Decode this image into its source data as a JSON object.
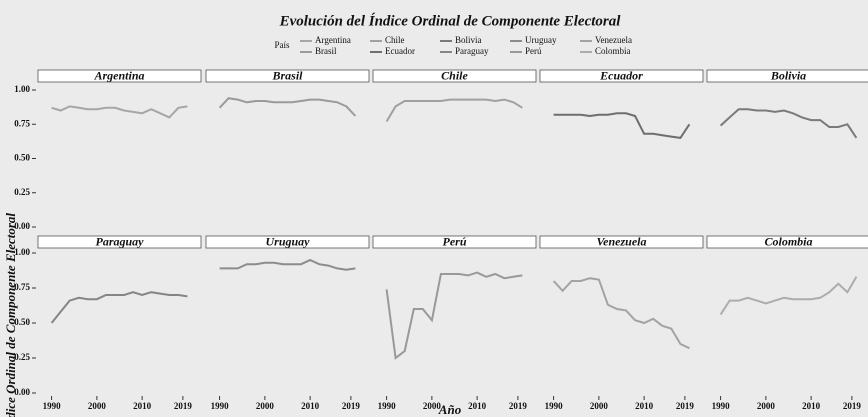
{
  "chart_data": {
    "type": "line",
    "title": "Evolución del Índice Ordinal de Componente Electoral",
    "legend_title": "País",
    "x_label": "Año",
    "y_label": "Índice Ordinal de Componente Electoral",
    "x": [
      1990,
      1992,
      1994,
      1996,
      1998,
      2000,
      2002,
      2004,
      2006,
      2008,
      2010,
      2012,
      2014,
      2016,
      2018,
      2020
    ],
    "xlim": [
      1987,
      2023
    ],
    "xticks": [
      1990,
      2000,
      2010,
      2019
    ],
    "ylim": [
      0,
      1
    ],
    "yticks": [
      {
        "value": 0,
        "label": "0.00"
      },
      0.25,
      {
        "value": 0.5,
        "label": "0.50"
      },
      0.75,
      {
        "value": 1,
        "label": "1.00"
      }
    ],
    "grid": false,
    "series": [
      {
        "name": "Argentina",
        "color": "#a6a6a6",
        "values": [
          0.87,
          0.85,
          0.88,
          0.87,
          0.86,
          0.86,
          0.87,
          0.87,
          0.85,
          0.84,
          0.83,
          0.86,
          0.83,
          0.8,
          0.87,
          0.88
        ]
      },
      {
        "name": "Brasil",
        "color": "#9a9a9a",
        "values": [
          0.87,
          0.94,
          0.93,
          0.91,
          0.92,
          0.92,
          0.91,
          0.91,
          0.91,
          0.92,
          0.93,
          0.93,
          0.92,
          0.91,
          0.88,
          0.81
        ]
      },
      {
        "name": "Chile",
        "color": "#a0a0a0",
        "values": [
          0.77,
          0.88,
          0.92,
          0.92,
          0.92,
          0.92,
          0.92,
          0.93,
          0.93,
          0.93,
          0.93,
          0.93,
          0.92,
          0.93,
          0.91,
          0.87
        ]
      },
      {
        "name": "Ecuador",
        "color": "#6e6e6e",
        "values": [
          0.82,
          0.82,
          0.82,
          0.82,
          0.81,
          0.82,
          0.82,
          0.83,
          0.83,
          0.81,
          0.68,
          0.68,
          0.67,
          0.66,
          0.65,
          0.75
        ]
      },
      {
        "name": "Bolivia",
        "color": "#7a7a7a",
        "values": [
          0.74,
          0.8,
          0.86,
          0.86,
          0.85,
          0.85,
          0.84,
          0.85,
          0.83,
          0.8,
          0.78,
          0.78,
          0.73,
          0.73,
          0.75,
          0.65
        ]
      },
      {
        "name": "Paraguay",
        "color": "#858585",
        "values": [
          0.5,
          0.58,
          0.66,
          0.68,
          0.67,
          0.67,
          0.7,
          0.7,
          0.7,
          0.72,
          0.7,
          0.72,
          0.71,
          0.7,
          0.7,
          0.69
        ]
      },
      {
        "name": "Uruguay",
        "color": "#8c8c8c",
        "values": [
          0.89,
          0.89,
          0.89,
          0.92,
          0.92,
          0.93,
          0.93,
          0.92,
          0.92,
          0.92,
          0.95,
          0.92,
          0.91,
          0.89,
          0.88,
          0.89
        ]
      },
      {
        "name": "Perú",
        "color": "#999999",
        "values": [
          0.74,
          0.25,
          0.3,
          0.6,
          0.6,
          0.52,
          0.85,
          0.85,
          0.85,
          0.84,
          0.86,
          0.83,
          0.85,
          0.82,
          0.83,
          0.84
        ]
      },
      {
        "name": "Venezuela",
        "color": "#a3a3a3",
        "values": [
          0.8,
          0.73,
          0.8,
          0.8,
          0.82,
          0.81,
          0.63,
          0.6,
          0.59,
          0.52,
          0.5,
          0.53,
          0.48,
          0.46,
          0.35,
          0.32
        ]
      },
      {
        "name": "Colombia",
        "color": "#acacac",
        "values": [
          0.56,
          0.66,
          0.66,
          0.68,
          0.66,
          0.64,
          0.66,
          0.68,
          0.67,
          0.67,
          0.67,
          0.68,
          0.72,
          0.78,
          0.72,
          0.83
        ]
      }
    ]
  }
}
